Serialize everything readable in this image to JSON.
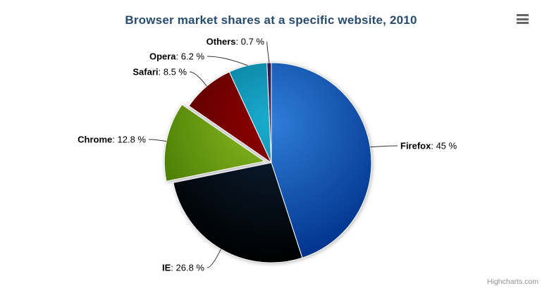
{
  "chart_data": {
    "type": "pie",
    "title": "Browser market shares at a specific website, 2010",
    "label_format": "{name}: {value} %",
    "start_angle_deg": 0,
    "direction": "clockwise",
    "legend": "none",
    "points": [
      {
        "name": "Firefox",
        "value": 45,
        "color": "#2f7ed8",
        "sliced": false
      },
      {
        "name": "IE",
        "value": 26.8,
        "color": "#0d233a",
        "sliced": false
      },
      {
        "name": "Chrome",
        "value": 12.8,
        "color": "#8bbc21",
        "sliced": true
      },
      {
        "name": "Safari",
        "value": 8.5,
        "color": "#910000",
        "sliced": false
      },
      {
        "name": "Opera",
        "value": 6.2,
        "color": "#1aadce",
        "sliced": false
      },
      {
        "name": "Others",
        "value": 0.7,
        "color": "#492970",
        "sliced": false
      }
    ]
  },
  "credits": {
    "label": "Highcharts.com"
  },
  "context_menu": {
    "icon": "hamburger-menu-icon"
  },
  "colors": {
    "title": "#274b6d",
    "data_label": "#000000",
    "connector": "#333333",
    "slice_border": "#ffffff",
    "credits": "#909090",
    "menu_icon": "#666666",
    "background": "#ffffff"
  }
}
